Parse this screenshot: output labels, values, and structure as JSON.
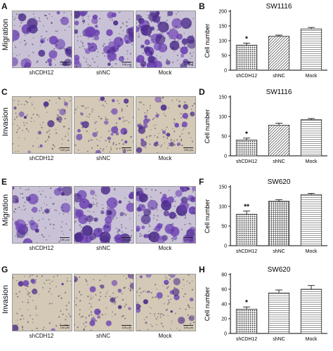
{
  "figure": {
    "rows": [
      {
        "left_letter": "A",
        "right_letter": "B",
        "row_label": "Migration",
        "conditions": [
          "shCDH12",
          "shNC",
          "Mock"
        ],
        "scale_labels": [
          "100 μm",
          "100 μm",
          "100 μm"
        ],
        "density": [
          0.35,
          0.6,
          0.7
        ],
        "tone": "dense"
      },
      {
        "left_letter": "C",
        "right_letter": "D",
        "row_label": "Invasion",
        "conditions": [
          "shCDH12",
          "shNC",
          "Mock"
        ],
        "scale_labels": [
          "100 μm",
          "100 μm",
          "100 μm"
        ],
        "density": [
          0.15,
          0.3,
          0.35
        ],
        "tone": "sparse"
      },
      {
        "left_letter": "E",
        "right_letter": "F",
        "row_label": "Migration",
        "conditions": [
          "shCDH12",
          "shNC",
          "Mock"
        ],
        "scale_labels": [
          "100 μm",
          "100 μm",
          "100 μm"
        ],
        "density": [
          0.3,
          0.55,
          0.65
        ],
        "tone": "dense"
      },
      {
        "left_letter": "G",
        "right_letter": "H",
        "row_label": "Invasion",
        "conditions": [
          "shCDH12",
          "shNC",
          "Mock"
        ],
        "scale_labels": [
          "100 μm",
          "100 μm",
          "100 μm"
        ],
        "density": [
          0.12,
          0.22,
          0.25
        ],
        "tone": "sparse"
      }
    ],
    "colors": {
      "stain": "#6b3fb3",
      "stain_dark": "#4a2a8a",
      "background_dense": "#c9c2d6",
      "background_sparse": "#d3c9b6"
    }
  },
  "chart_data": [
    {
      "type": "bar",
      "title": "SW1116",
      "ylabel": "Cell number",
      "categories": [
        "shCDH12",
        "shNC",
        "Mock"
      ],
      "values": [
        85,
        115,
        140
      ],
      "errors": [
        7,
        4,
        5
      ],
      "yticks": [
        0,
        50,
        100,
        150,
        200
      ],
      "ylim": [
        0,
        200
      ],
      "significance": [
        "*",
        "",
        ""
      ],
      "patterns": [
        "dots",
        "diagonal",
        "horizontal"
      ]
    },
    {
      "type": "bar",
      "title": "SW1116",
      "ylabel": "Cell number",
      "categories": [
        "shCDH12",
        "shNC",
        "Mock"
      ],
      "values": [
        40,
        78,
        92
      ],
      "errors": [
        5,
        5,
        3
      ],
      "yticks": [
        0,
        50,
        100,
        150
      ],
      "ylim": [
        0,
        150
      ],
      "significance": [
        "*",
        "",
        ""
      ],
      "patterns": [
        "dots",
        "diagonal",
        "horizontal"
      ]
    },
    {
      "type": "bar",
      "title": "SW620",
      "ylabel": "Cell number",
      "categories": [
        "shCDH12",
        "shNC",
        "Mock"
      ],
      "values": [
        80,
        113,
        130
      ],
      "errors": [
        8,
        4,
        3
      ],
      "yticks": [
        0,
        50,
        100,
        150
      ],
      "ylim": [
        0,
        150
      ],
      "significance": [
        "**",
        "",
        ""
      ],
      "patterns": [
        "dots",
        "grid",
        "horizontal"
      ]
    },
    {
      "type": "bar",
      "title": "SW620",
      "ylabel": "Cell number",
      "categories": [
        "shCDH12",
        "shNC",
        "Mock"
      ],
      "values": [
        33,
        55,
        60
      ],
      "errors": [
        3,
        4,
        5
      ],
      "yticks": [
        0,
        20,
        40,
        60,
        80
      ],
      "ylim": [
        0,
        80
      ],
      "significance": [
        "*",
        "",
        ""
      ],
      "patterns": [
        "dots",
        "horizontal",
        "horizontal"
      ]
    }
  ]
}
